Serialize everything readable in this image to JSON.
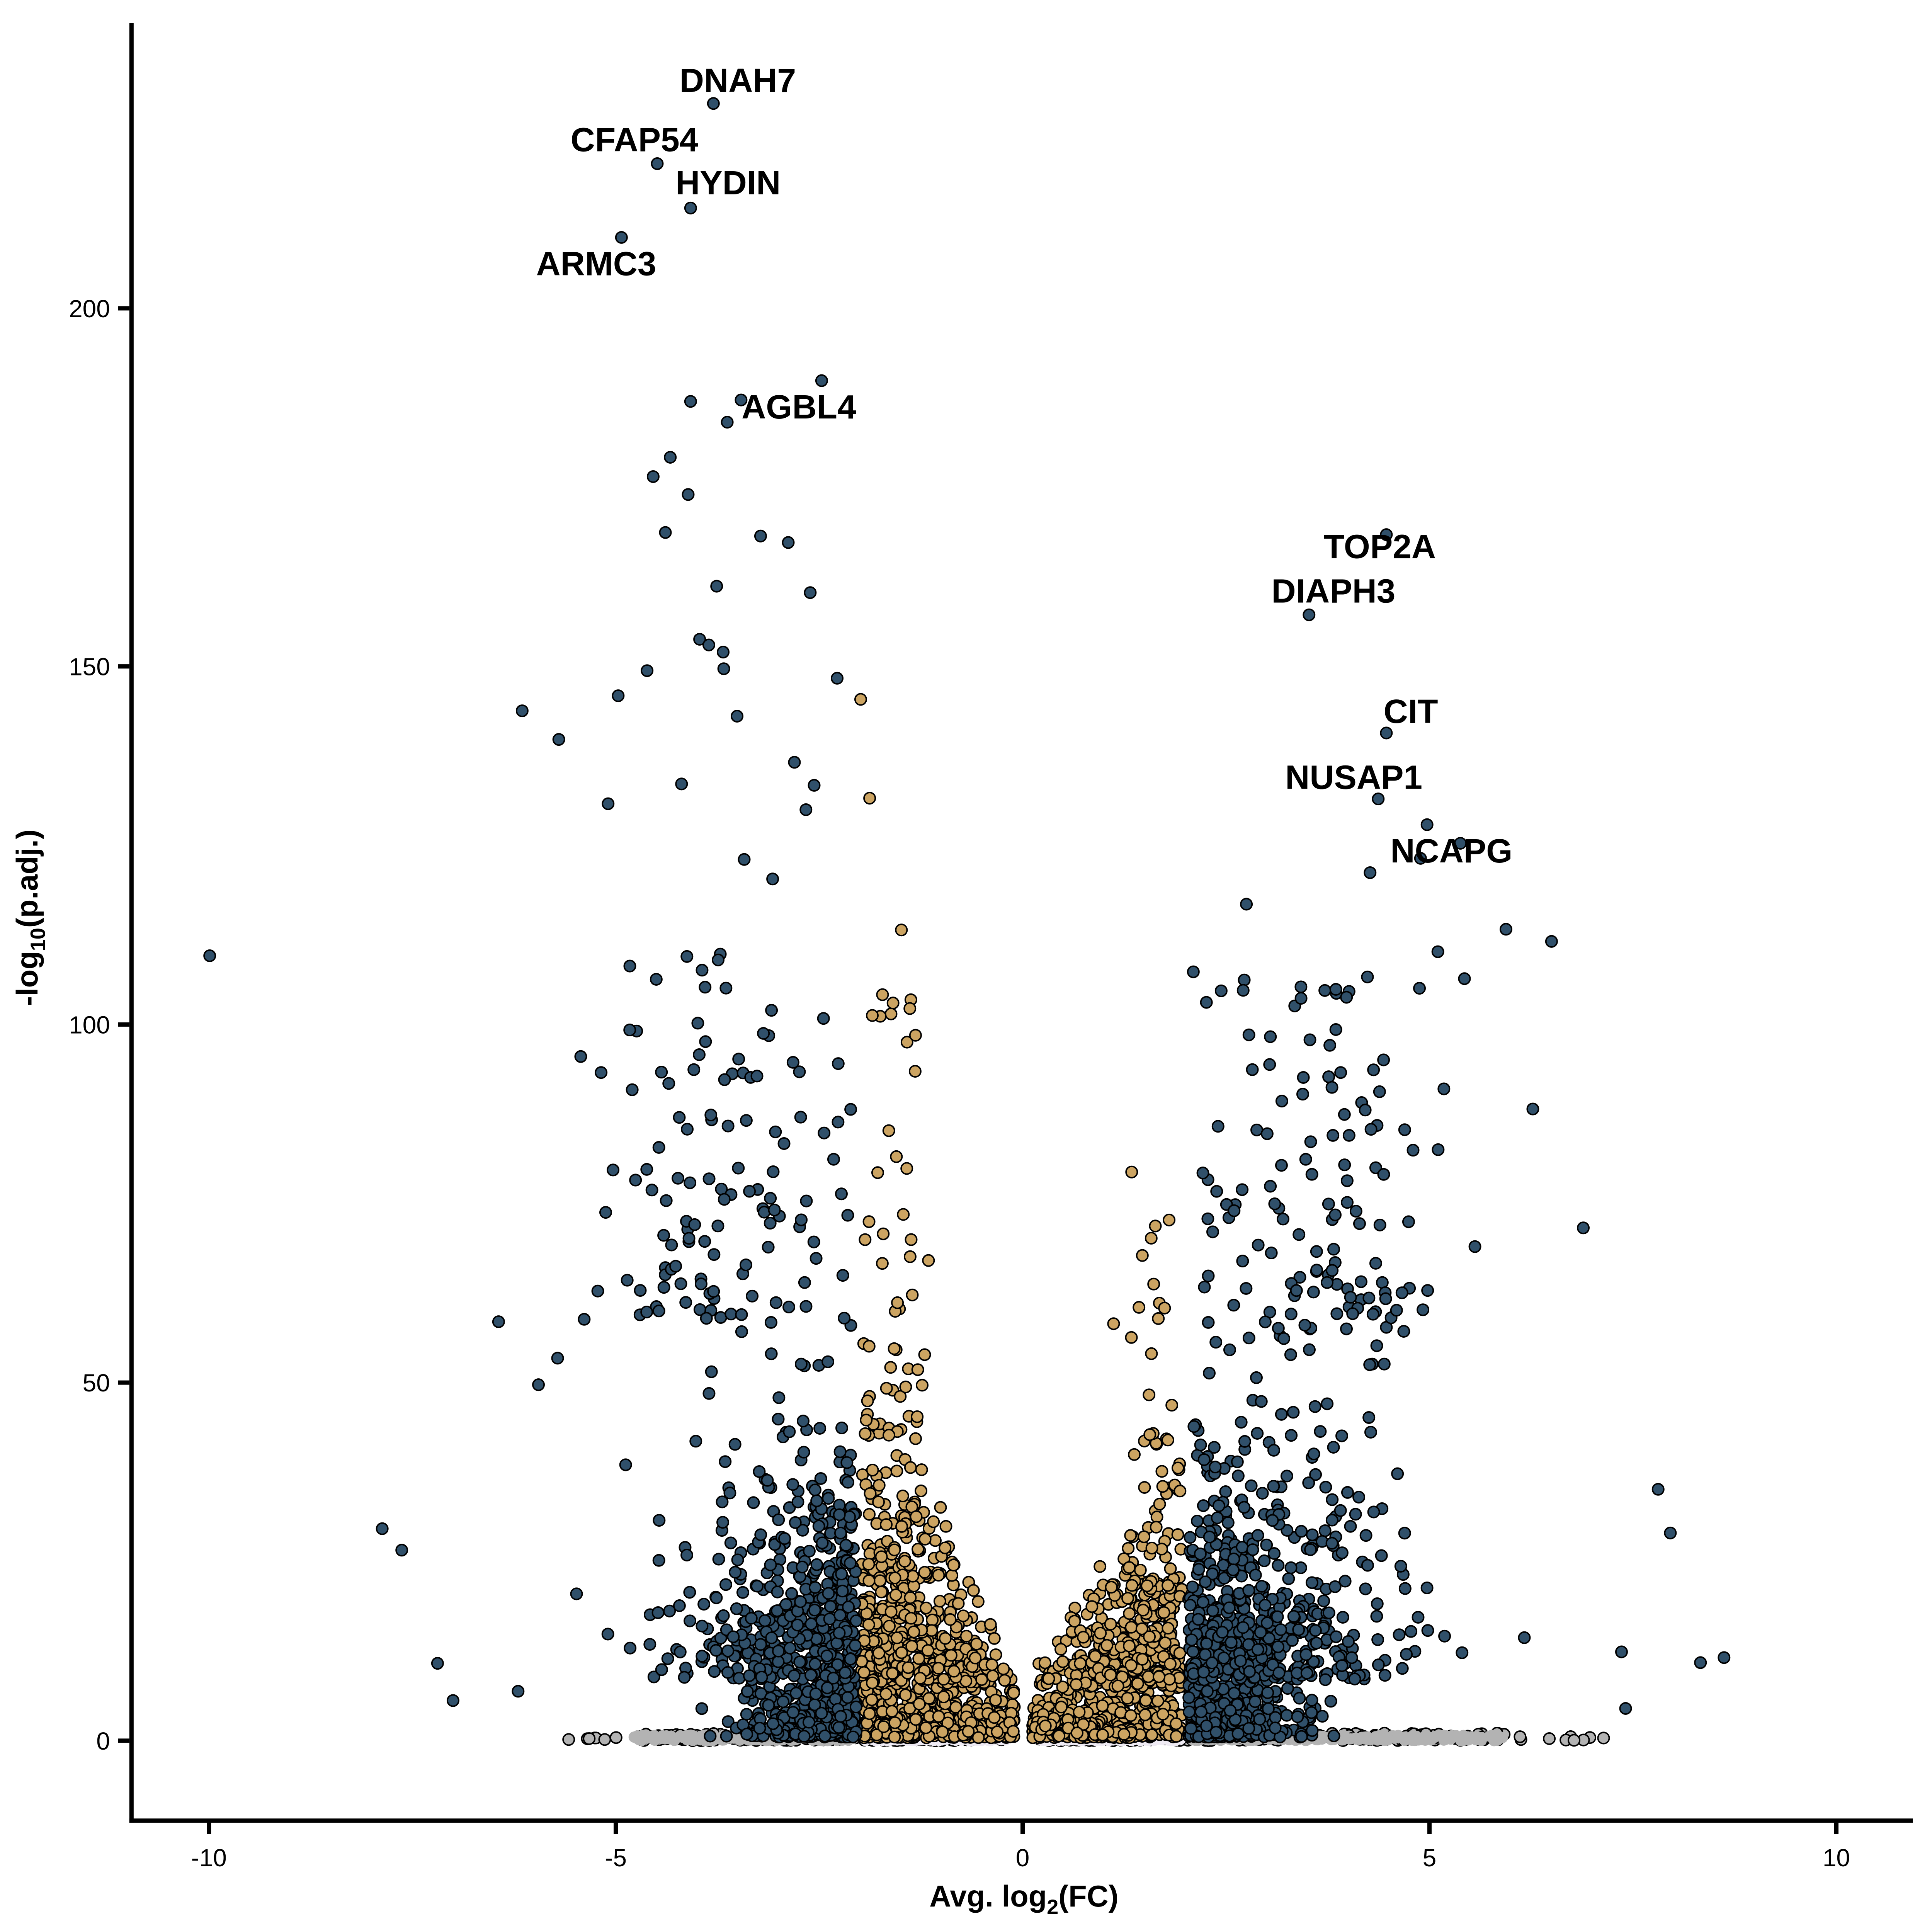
{
  "figure": {
    "background": "#ffffff"
  },
  "colors": {
    "teal": "#30506A",
    "tan": "#CCA462",
    "gray": "#B3B3B3",
    "lavender": "#EFEBF4",
    "outline": "#000000",
    "axis": "#000000",
    "text": "#000000"
  },
  "chart_data": {
    "type": "scatter",
    "title": "",
    "xlabel": "Avg. log2(FC)",
    "ylabel": "-log10(p.adj.)",
    "x_title_parts": {
      "pre": "Avg. log",
      "sub": "2",
      "post": "(FC)"
    },
    "y_title_parts": {
      "pre": "-log",
      "sub": "10",
      "post": "(p.adj.)"
    },
    "xlim": [
      -11,
      11.2
    ],
    "ylim": [
      -11,
      240
    ],
    "x_ticks": [
      -10,
      -5,
      0,
      5,
      10
    ],
    "y_ticks": [
      0,
      50,
      100,
      150,
      200
    ],
    "grid": false,
    "legend": "none",
    "labeled_genes": [
      {
        "name": "DNAH7",
        "x": -3.8,
        "y": 228.6,
        "label_x": -3.5,
        "label_y": 231.9
      },
      {
        "name": "CFAP54",
        "x": -4.49,
        "y": 220.2,
        "label_x": -4.77,
        "label_y": 223.6
      },
      {
        "name": "HYDIN",
        "x": -4.08,
        "y": 214.0,
        "label_x": -3.62,
        "label_y": 217.6
      },
      {
        "name": "ARMC3",
        "x": -4.93,
        "y": 209.9,
        "label_x": -5.24,
        "label_y": 206.3
      },
      {
        "name": "AGBL4",
        "x": -3.46,
        "y": 187.2,
        "label_x": -2.75,
        "label_y": 186.3
      },
      {
        "name": "TOP2A",
        "x": 4.47,
        "y": 168.4,
        "label_x": 4.39,
        "label_y": 166.8
      },
      {
        "name": "DIAPH3",
        "x": 3.52,
        "y": 157.2,
        "label_x": 3.82,
        "label_y": 160.6
      },
      {
        "name": "CIT",
        "x": 4.47,
        "y": 140.7,
        "label_x": 4.77,
        "label_y": 143.8
      },
      {
        "name": "NUSAP1",
        "x": 4.37,
        "y": 131.5,
        "label_x": 4.07,
        "label_y": 134.6
      },
      {
        "name": "NCAPG",
        "x": 4.89,
        "y": 123.2,
        "label_x": 5.27,
        "label_y": 124.3
      }
    ],
    "extra_points": {
      "teal_left": [
        [
          -9.99,
          109.6
        ],
        [
          -7.87,
          29.6
        ],
        [
          -7.63,
          26.6
        ],
        [
          -7.19,
          10.8
        ],
        [
          -7.0,
          5.6
        ],
        [
          -6.44,
          58.5
        ],
        [
          -6.15,
          143.8
        ],
        [
          -5.95,
          49.7
        ],
        [
          -6.2,
          6.9
        ],
        [
          -5.7,
          139.8
        ],
        [
          -4.97,
          145.9
        ],
        [
          -3.68,
          152.0
        ],
        [
          -3.63,
          184.1
        ],
        [
          -2.47,
          189.9
        ],
        [
          -4.08,
          187.0
        ],
        [
          -4.33,
          179.2
        ],
        [
          -4.11,
          174.0
        ],
        [
          -4.39,
          168.7
        ],
        [
          -2.88,
          167.3
        ],
        [
          -3.22,
          168.2
        ],
        [
          -3.76,
          161.2
        ],
        [
          -2.61,
          160.3
        ],
        [
          -4.54,
          176.5
        ]
      ],
      "teal_right": [
        [
          6.5,
          111.6
        ],
        [
          5.94,
          113.3
        ],
        [
          5.43,
          106.4
        ],
        [
          2.75,
          116.8
        ],
        [
          2.44,
          104.7
        ],
        [
          3.98,
          103.8
        ],
        [
          7.81,
          35.1
        ],
        [
          7.96,
          29.0
        ],
        [
          7.36,
          12.4
        ],
        [
          7.41,
          4.5
        ],
        [
          8.33,
          10.9
        ],
        [
          8.62,
          11.6
        ],
        [
          6.27,
          88.2
        ],
        [
          6.89,
          71.6
        ],
        [
          4.97,
          127.9
        ],
        [
          5.38,
          125.3
        ],
        [
          4.27,
          121.2
        ]
      ],
      "tan_left": [
        [
          -1.99,
          145.4
        ],
        [
          -1.88,
          131.6
        ],
        [
          -1.49,
          113.2
        ]
      ],
      "tan_right": [
        [
          1.34,
          79.4
        ],
        [
          1.8,
          72.7
        ]
      ]
    },
    "clouds": [
      {
        "name": "gray-left-sparse",
        "color": "gray",
        "stroke": true,
        "n": 7,
        "x": [
          "u",
          -5.75,
          -4.82
        ],
        "y": [
          "u",
          0.05,
          0.65
        ]
      },
      {
        "name": "gray-left-band",
        "color": "gray",
        "stroke": true,
        "n": 115,
        "x": [
          "u",
          -4.82,
          -2.02
        ],
        "y": [
          "u",
          0,
          1.05
        ]
      },
      {
        "name": "gray-left-fill",
        "color": "gray",
        "stroke": false,
        "n": 170,
        "x": [
          "u",
          -4.78,
          -2.02
        ],
        "y": [
          "u",
          0,
          0.75
        ]
      },
      {
        "name": "gray-right-band",
        "color": "gray",
        "stroke": true,
        "n": 135,
        "x": [
          "u",
          2.02,
          5.95
        ],
        "y": [
          "u",
          0,
          1.05
        ]
      },
      {
        "name": "gray-right-fill",
        "color": "gray",
        "stroke": false,
        "n": 200,
        "x": [
          "u",
          2.04,
          5.9
        ],
        "y": [
          "u",
          0,
          0.75
        ]
      },
      {
        "name": "gray-right-sparse",
        "color": "gray",
        "stroke": true,
        "n": 9,
        "x": [
          "u",
          5.95,
          7.25
        ],
        "y": [
          "u",
          0.05,
          0.6
        ]
      },
      {
        "name": "lav-left-bumps",
        "color": "lavender",
        "stroke": true,
        "n": 150,
        "x": [
          "u",
          -1.95,
          -0.2
        ],
        "y": [
          "u",
          0,
          1.55
        ]
      },
      {
        "name": "lav-left-fill",
        "color": "lavender",
        "stroke": false,
        "n": 280,
        "x": [
          "u",
          -1.96,
          -0.18
        ],
        "y": [
          "u",
          0,
          1.2
        ]
      },
      {
        "name": "lav-right-bumps",
        "color": "lavender",
        "stroke": true,
        "n": 150,
        "x": [
          "u",
          0.18,
          1.94
        ],
        "y": [
          "u",
          0,
          1.55
        ]
      },
      {
        "name": "lav-right-fill",
        "color": "lavender",
        "stroke": false,
        "n": 280,
        "x": [
          "u",
          0.17,
          1.95
        ],
        "y": [
          "u",
          0,
          1.2
        ]
      },
      {
        "name": "tan-left-base",
        "color": "tan",
        "stroke": true,
        "n": 520,
        "x": [
          "u",
          -1.98,
          -0.1
        ],
        "y": [
          "exp",
          3.0,
          0.4
        ],
        "ymax": 9
      },
      {
        "name": "tan-left-wedge",
        "color": "tan",
        "stroke": true,
        "n": 400,
        "x": [
          "triA",
          -1.99,
          -0.1
        ],
        "y": [
          "exp",
          11,
          8
        ],
        "wedge": {
          "x0": -1.99,
          "y0": 58,
          "x1": -0.1,
          "y1": 10
        }
      },
      {
        "name": "tan-left-column",
        "color": "tan",
        "stroke": true,
        "n": 75,
        "x": [
          "u",
          -1.99,
          -1.2
        ],
        "y": [
          "u",
          8,
          57
        ]
      },
      {
        "name": "tan-left-spine",
        "color": "tan",
        "stroke": true,
        "n": 26,
        "x": [
          "n",
          -1.6,
          0.22
        ],
        "xmin": -1.99,
        "xmax": -0.95,
        "y": [
          "u",
          57,
          106
        ]
      },
      {
        "name": "tan-right-base",
        "color": "tan",
        "stroke": true,
        "n": 450,
        "x": [
          "u",
          0.12,
          1.96
        ],
        "y": [
          "exp",
          2.8,
          0.4
        ],
        "ymax": 8.5
      },
      {
        "name": "tan-right-wedge",
        "color": "tan",
        "stroke": true,
        "n": 320,
        "x": [
          "triB",
          0.12,
          1.96
        ],
        "y": [
          "exp",
          9,
          7.5
        ],
        "wedge": {
          "x0": 0.12,
          "y0": 10,
          "x1": 1.96,
          "y1": 42
        }
      },
      {
        "name": "tan-right-column",
        "color": "tan",
        "stroke": true,
        "n": 45,
        "x": [
          "u",
          1.25,
          1.96
        ],
        "y": [
          "u",
          8,
          43
        ]
      },
      {
        "name": "tan-right-spine",
        "color": "tan",
        "stroke": true,
        "n": 13,
        "x": [
          "n",
          1.5,
          0.25
        ],
        "xmin": 0.95,
        "xmax": 1.96,
        "y": [
          "u",
          43,
          72
        ]
      },
      {
        "name": "teal-left-base",
        "color": "teal",
        "stroke": true,
        "n": 400,
        "x": [
          "hn",
          -2.04,
          0.68,
          -1
        ],
        "xmin": -5.4,
        "y": [
          "exp",
          3.2,
          0.5
        ],
        "ymax": 8.5
      },
      {
        "name": "teal-left-mid",
        "color": "teal",
        "stroke": true,
        "n": 470,
        "x": [
          "hn",
          -2.04,
          1.05,
          -1
        ],
        "xmin": -6.6,
        "y": [
          "exp",
          13,
          8.5
        ],
        "ymax": 58
      },
      {
        "name": "teal-left-upper",
        "color": "teal",
        "stroke": true,
        "n": 135,
        "x": [
          "n",
          -3.55,
          0.85
        ],
        "xmin": -6.4,
        "xmax": -2.04,
        "y": [
          "exp",
          34,
          58
        ],
        "ymax": 158
      },
      {
        "name": "teal-right-base",
        "color": "teal",
        "stroke": true,
        "n": 420,
        "x": [
          "hn",
          2.04,
          0.62,
          1
        ],
        "xmax": 4.7,
        "y": [
          "exp",
          3.2,
          0.5
        ],
        "ymax": 8.5
      },
      {
        "name": "teal-right-mid",
        "color": "teal",
        "stroke": true,
        "n": 530,
        "x": [
          "hn",
          2.04,
          1.15,
          1
        ],
        "xmax": 7.0,
        "y": [
          "exp",
          12,
          8.5
        ],
        "ymax": 52
      },
      {
        "name": "teal-right-upper",
        "color": "teal",
        "stroke": true,
        "n": 140,
        "x": [
          "n",
          3.55,
          0.8
        ],
        "xmin": 2.04,
        "xmax": 6.35,
        "y": [
          "exp",
          27,
          52
        ],
        "ymax": 112
      }
    ]
  }
}
